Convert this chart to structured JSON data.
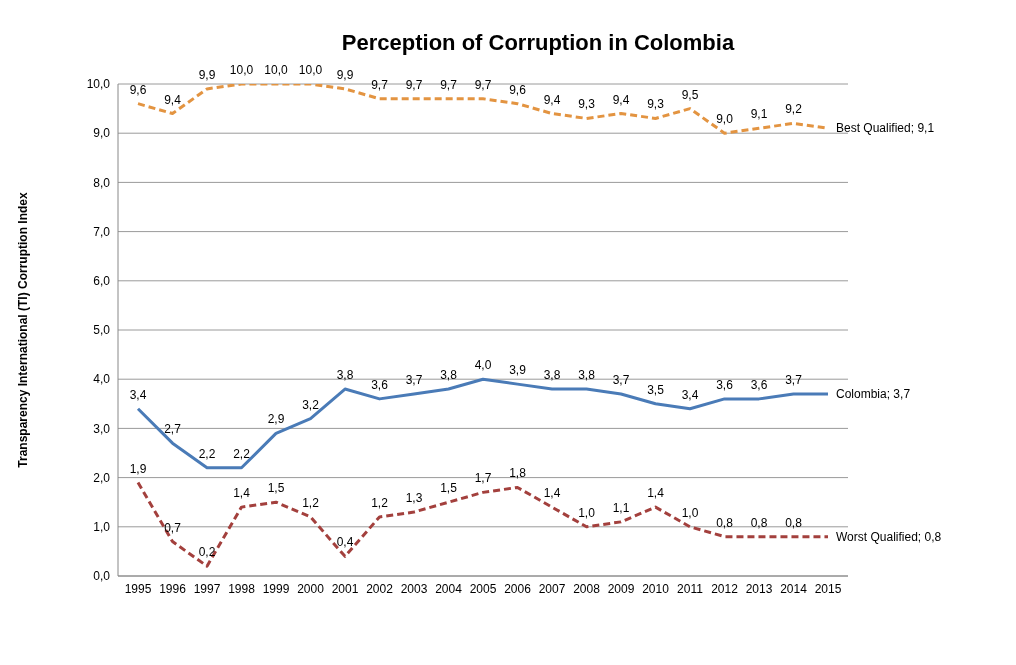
{
  "chart_data": {
    "type": "line",
    "title": "Perception of Corruption in Colombia",
    "ylabel": "Transparency International (TI) Corruption Index",
    "categories": [
      "1995",
      "1996",
      "1997",
      "1998",
      "1999",
      "2000",
      "2001",
      "2002",
      "2003",
      "2004",
      "2005",
      "2006",
      "2007",
      "2008",
      "2009",
      "2010",
      "2011",
      "2012",
      "2013",
      "2014",
      "2015"
    ],
    "series": [
      {
        "name": "Best Qualified",
        "color": "#e39441",
        "line_style": "dashed",
        "values": [
          9.6,
          9.4,
          9.9,
          10.0,
          10.0,
          10.0,
          9.9,
          9.7,
          9.7,
          9.7,
          9.7,
          9.6,
          9.4,
          9.3,
          9.4,
          9.3,
          9.5,
          9.0,
          9.1,
          9.2,
          9.1
        ],
        "value_labels": [
          "9,6",
          "9,4",
          "9,9",
          "10,0",
          "10,0",
          "10,0",
          "9,9",
          "9,7",
          "9,7",
          "9,7",
          "9,7",
          "9,6",
          "9,4",
          "9,3",
          "9,4",
          "9,3",
          "9,5",
          "9,0",
          "9,1",
          "9,2",
          null
        ]
      },
      {
        "name": "Colombia",
        "color": "#4a7bb7",
        "line_style": "solid",
        "values": [
          3.4,
          2.7,
          2.2,
          2.2,
          2.9,
          3.2,
          3.8,
          3.6,
          3.7,
          3.8,
          4.0,
          3.9,
          3.8,
          3.8,
          3.7,
          3.5,
          3.4,
          3.6,
          3.6,
          3.7,
          3.7
        ],
        "value_labels": [
          "3,4",
          "2,7",
          "2,2",
          "2,2",
          "2,9",
          "3,2",
          "3,8",
          "3,6",
          "3,7",
          "3,8",
          "4,0",
          "3,9",
          "3,8",
          "3,8",
          "3,7",
          "3,5",
          "3,4",
          "3,6",
          "3,6",
          "3,7",
          null
        ]
      },
      {
        "name": "Worst Qualified",
        "color": "#a3403d",
        "line_style": "dashed",
        "values": [
          1.9,
          0.7,
          0.2,
          1.4,
          1.5,
          1.2,
          0.4,
          1.2,
          1.3,
          1.5,
          1.7,
          1.8,
          1.4,
          1.0,
          1.1,
          1.4,
          1.0,
          0.8,
          0.8,
          0.8,
          0.8
        ],
        "value_labels": [
          "1,9",
          "0,7",
          "0,2",
          "1,4",
          "1,5",
          "1,2",
          "0,4",
          "1,2",
          "1,3",
          "1,5",
          "1,7",
          "1,8",
          "1,4",
          "1,0",
          "1,1",
          "1,4",
          "1,0",
          "0,8",
          "0,8",
          "0,8",
          null
        ]
      }
    ],
    "ylim": [
      0,
      10
    ],
    "yticks": [
      {
        "value": 0,
        "label": "0,0"
      },
      {
        "value": 1,
        "label": "1,0"
      },
      {
        "value": 2,
        "label": "2,0"
      },
      {
        "value": 3,
        "label": "3,0"
      },
      {
        "value": 4,
        "label": "4,0"
      },
      {
        "value": 5,
        "label": "5,0"
      },
      {
        "value": 6,
        "label": "6,0"
      },
      {
        "value": 7,
        "label": "7,0"
      },
      {
        "value": 8,
        "label": "8,0"
      },
      {
        "value": 9,
        "label": "9,0"
      },
      {
        "value": 10,
        "label": "10,0"
      }
    ],
    "annotations": [
      "; 9,1",
      "; 3,7",
      "; 0,8"
    ],
    "grid": "y",
    "legend": false,
    "marker": "none"
  }
}
